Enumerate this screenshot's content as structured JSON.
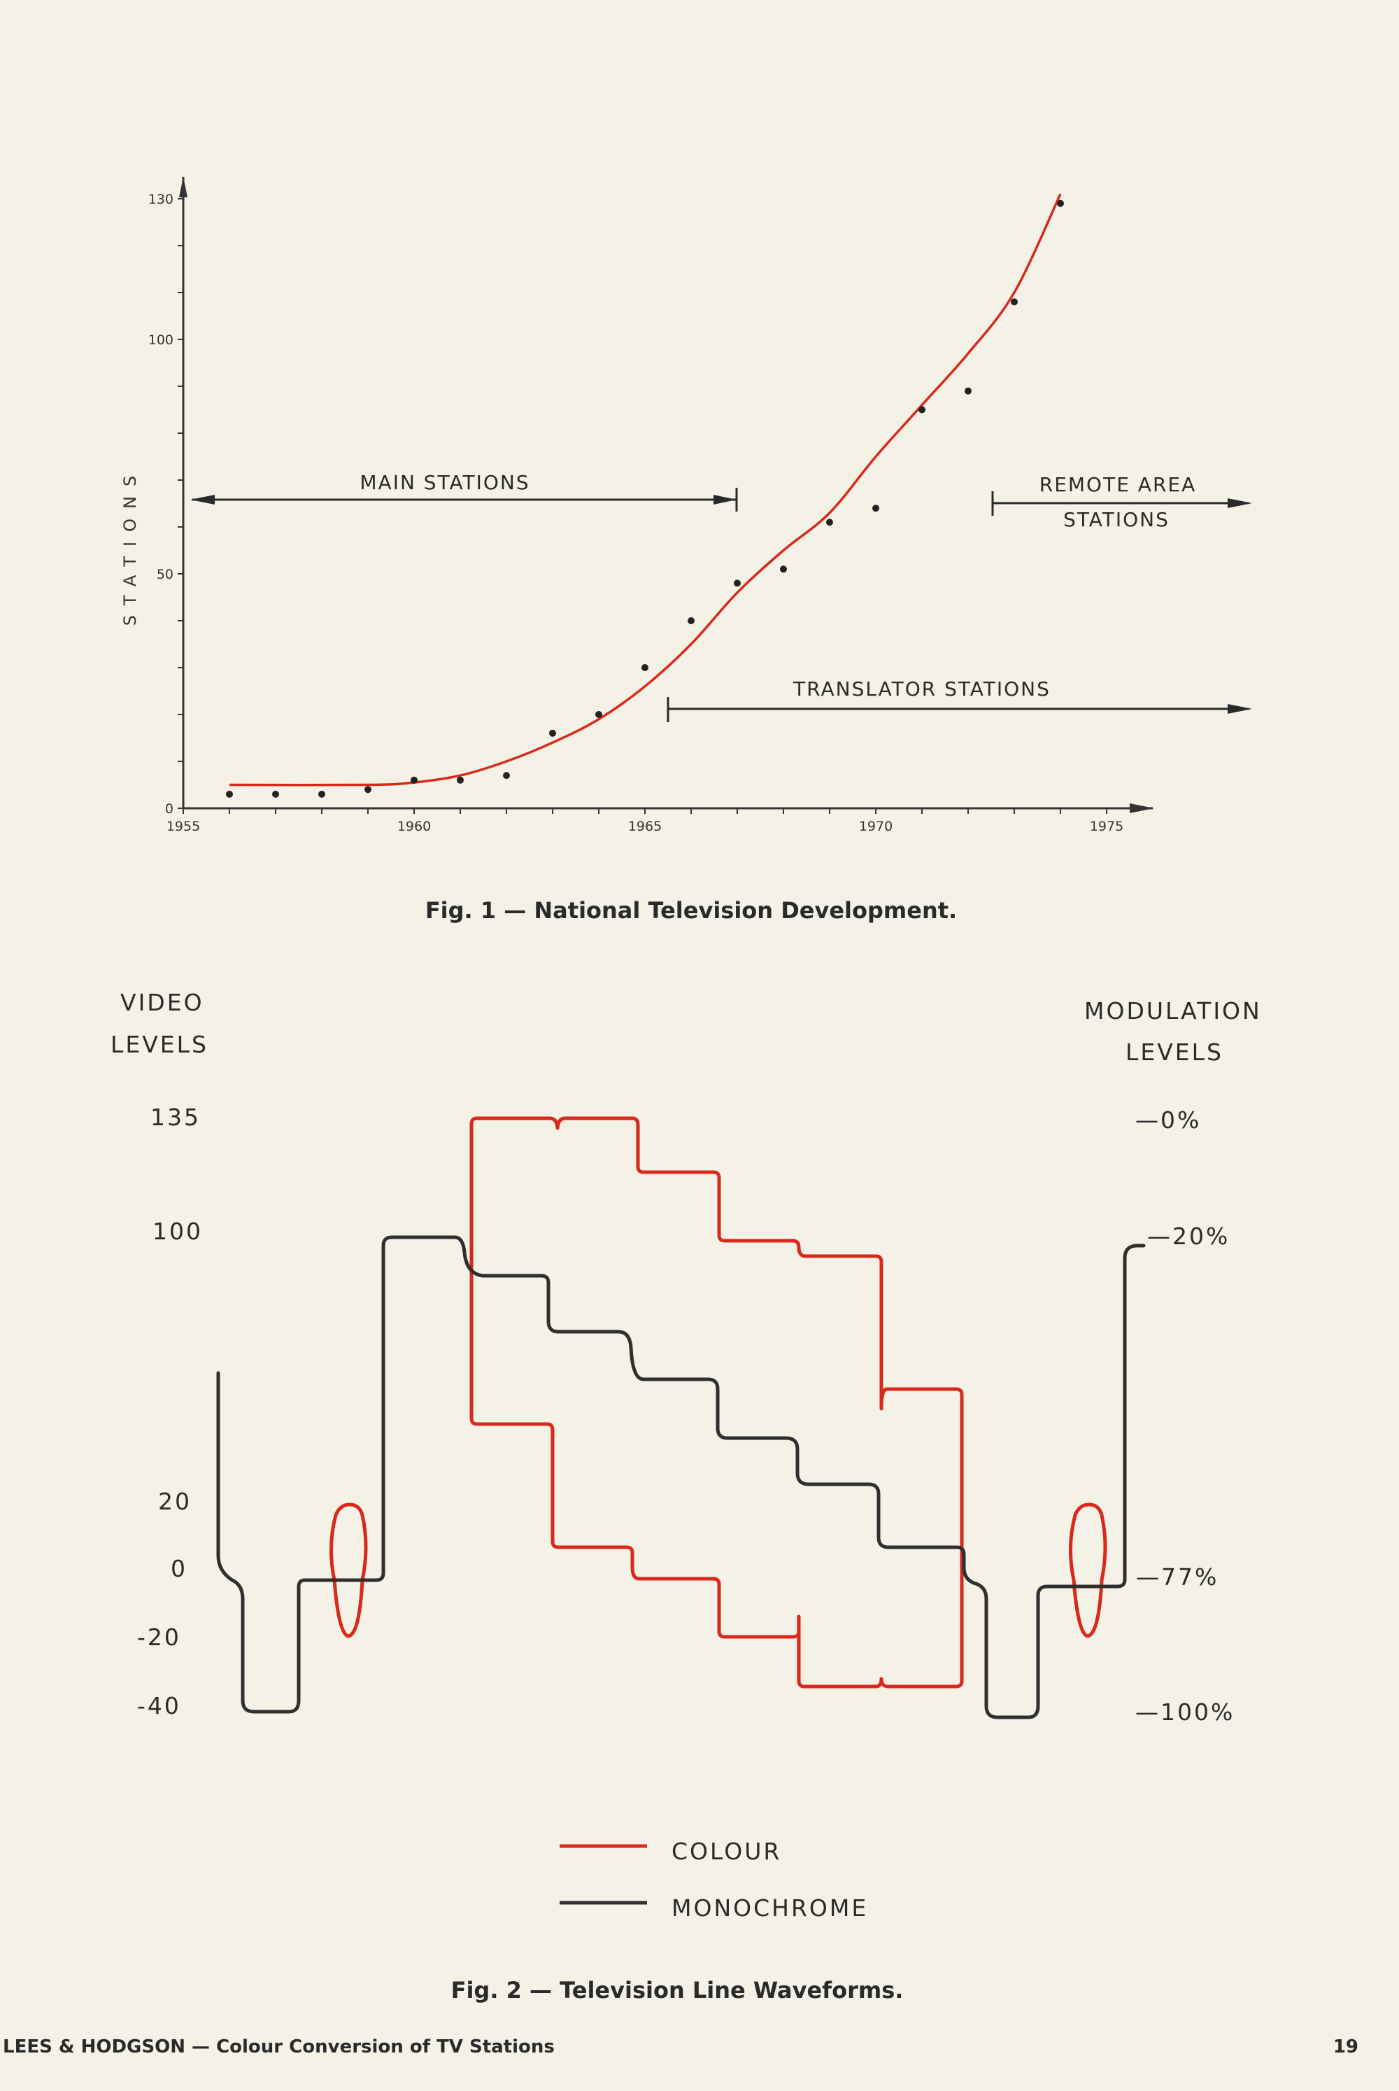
{
  "fig1": {
    "caption": "Fig. 1 — National Television Development.",
    "ylabel": "STATIONS",
    "annotations": {
      "main": "MAIN STATIONS",
      "remote_1": "REMOTE AREA",
      "remote_2": "STATIONS",
      "translator": "TRANSLATOR STATIONS"
    },
    "chart_data": {
      "type": "scatter",
      "title": "Fig. 1 — National Television Development.",
      "xlabel": "",
      "ylabel": "STATIONS",
      "xlim": [
        1955,
        1976
      ],
      "ylim": [
        0,
        130
      ],
      "x_ticks": [
        "1955",
        "1960",
        "1965",
        "1970",
        "1975"
      ],
      "y_ticks": [
        "0",
        "50",
        "100",
        "130"
      ],
      "series": [
        {
          "x": [
            1956,
            1957,
            1958,
            1959,
            1960,
            1961,
            1962,
            1963,
            1964,
            1965,
            1966,
            1967,
            1968,
            1969,
            1970,
            1971,
            1972,
            1973,
            1974
          ],
          "values": [
            3,
            3,
            3,
            4,
            6,
            6,
            7,
            16,
            20,
            30,
            40,
            48,
            51,
            61,
            64,
            85,
            89,
            108,
            129
          ]
        }
      ],
      "trend_line": {
        "x": [
          1956,
          1959,
          1960,
          1961,
          1962,
          1963,
          1964,
          1965,
          1966,
          1967,
          1968,
          1969,
          1970,
          1971,
          1972,
          1973,
          1974
        ],
        "values": [
          5,
          5,
          5.5,
          7,
          10,
          14,
          19,
          26,
          35,
          46,
          55,
          63,
          75,
          86,
          97,
          110,
          131
        ]
      },
      "ranges": [
        {
          "label": "MAIN STATIONS",
          "from": 1955,
          "to": 1967
        },
        {
          "label": "REMOTE AREA STATIONS",
          "from": 1972.8,
          "to": 1978
        },
        {
          "label": "TRANSLATOR STATIONS",
          "from": 1965.5,
          "to": 1978
        }
      ]
    }
  },
  "fig2": {
    "caption": "Fig. 2 — Television Line Waveforms.",
    "left_title_1": "VIDEO",
    "left_title_2": "LEVELS",
    "right_title_1": "MODULATION",
    "right_title_2": "LEVELS",
    "video_levels": [
      "135",
      "100",
      "20",
      "0",
      "-20",
      "-40"
    ],
    "modulation_levels": [
      "—0%",
      "—20%",
      "—77%",
      "—100%"
    ],
    "legend": {
      "colour": "COLOUR",
      "mono": "MONOCHROME"
    },
    "colors": {
      "colour": "#d8291c",
      "mono": "#2f2f2f"
    }
  },
  "footer": {
    "left": "LEES & HODGSON — Colour Conversion of TV Stations",
    "page": "19"
  }
}
